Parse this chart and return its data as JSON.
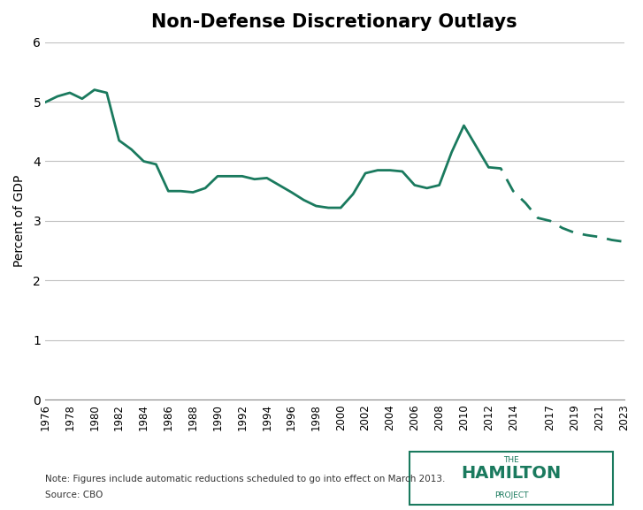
{
  "title": "Non-Defense Discretionary Outlays",
  "ylabel": "Percent of GDP",
  "note": "Note: Figures include automatic reductions scheduled to go into effect on March 2013.",
  "source": "Source: CBO",
  "line_color": "#1a7a5e",
  "ylim": [
    0,
    6
  ],
  "yticks": [
    0,
    1,
    2,
    3,
    4,
    5,
    6
  ],
  "solid_years": [
    1976,
    1977,
    1978,
    1979,
    1980,
    1981,
    1982,
    1983,
    1984,
    1985,
    1986,
    1987,
    1988,
    1989,
    1990,
    1991,
    1992,
    1993,
    1994,
    1995,
    1996,
    1997,
    1998,
    1999,
    2000,
    2001,
    2002,
    2003,
    2004,
    2005,
    2006,
    2007,
    2008,
    2009,
    2010,
    2011,
    2012
  ],
  "solid_values": [
    4.99,
    5.09,
    5.15,
    5.05,
    5.2,
    5.15,
    4.35,
    4.2,
    4.0,
    3.95,
    3.5,
    3.5,
    3.48,
    3.55,
    3.75,
    3.75,
    3.75,
    3.7,
    3.72,
    3.6,
    3.48,
    3.35,
    3.25,
    3.22,
    3.22,
    3.45,
    3.8,
    3.85,
    3.85,
    3.83,
    3.6,
    3.55,
    3.6,
    4.15,
    4.6,
    4.25,
    3.9
  ],
  "dashed_years": [
    2012,
    2013,
    2014,
    2015,
    2016,
    2017,
    2018,
    2019,
    2020,
    2021,
    2022,
    2023
  ],
  "dashed_values": [
    3.9,
    3.88,
    3.5,
    3.3,
    3.05,
    3.0,
    2.88,
    2.8,
    2.76,
    2.73,
    2.68,
    2.65
  ],
  "xtick_years": [
    1976,
    1978,
    1980,
    1982,
    1984,
    1986,
    1988,
    1990,
    1992,
    1994,
    1996,
    1998,
    2000,
    2002,
    2004,
    2006,
    2008,
    2010,
    2012,
    2014,
    2017,
    2019,
    2021,
    2023
  ],
  "bg_color": "#ffffff",
  "grid_color": "#c0c0c0",
  "logo_text_the": "THE",
  "logo_text_main": "HAMILTON",
  "logo_text_project": "PROJECT",
  "logo_border_color": "#1a7a5e"
}
